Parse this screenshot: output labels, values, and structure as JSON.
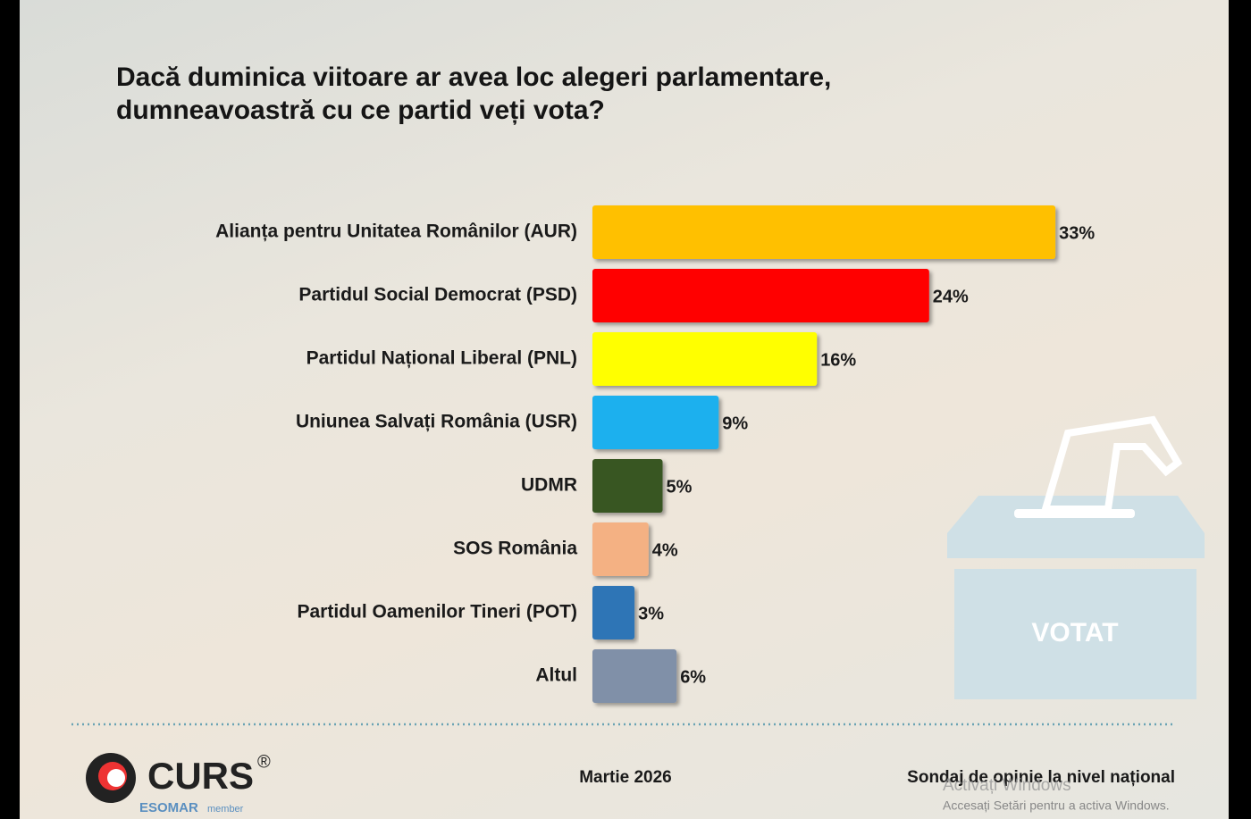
{
  "chart_data": {
    "type": "bar",
    "orientation": "horizontal",
    "title": "Dacă duminica viitoare ar avea loc alegeri parlamentare, dumneavoastră cu ce partid veți vota?",
    "categories": [
      "Alianța pentru Unitatea Românilor (AUR)",
      "Partidul Social Democrat (PSD)",
      "Partidul Național Liberal (PNL)",
      "Uniunea Salvați România (USR)",
      "UDMR",
      "SOS România",
      "Partidul Oamenilor Tineri (POT)",
      "Altul"
    ],
    "values": [
      33,
      24,
      16,
      9,
      5,
      4,
      3,
      6
    ],
    "value_labels": [
      "33%",
      "24%",
      "16%",
      "9%",
      "5%",
      "4%",
      "3%",
      "6%"
    ],
    "colors": [
      "#ffc000",
      "#ff0000",
      "#ffff00",
      "#1eb0ee",
      "#375623",
      "#f4b183",
      "#2e75b6",
      "#8090a8"
    ]
  },
  "illustration": {
    "label": "VOTAT"
  },
  "logo": {
    "name": "CURS",
    "mark": "®",
    "org": "ESOMAR",
    "suffix": "member"
  },
  "footer": {
    "date": "Martie 2026",
    "source": "Sondaj de opinie la nivel național"
  },
  "watermark": {
    "title": "Activați Windows",
    "text": "Accesați Setări pentru a activa Windows."
  }
}
